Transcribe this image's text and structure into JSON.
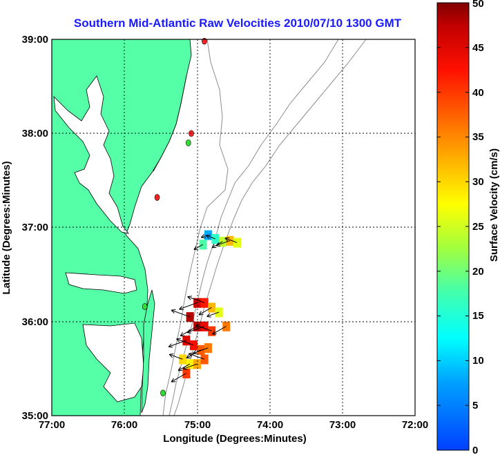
{
  "chart_data": {
    "type": "heatmap",
    "title": "Southern Mid-Atlantic Raw Velocities 2010/07/10 1300 GMT",
    "xlabel": "Longitude (Degrees:Minutes)",
    "ylabel": "Latitude (Degrees:Minutes)",
    "x_ticks": [
      "77:00",
      "76:00",
      "75:00",
      "74:00",
      "73:00",
      "72:00"
    ],
    "y_ticks": [
      "39:00",
      "38:00",
      "37:00",
      "36:00",
      "35:00"
    ],
    "xlim": [
      -77,
      -72
    ],
    "ylim": [
      35,
      39
    ],
    "grid": true,
    "colorbar": {
      "label": "Surface Velocity (cm/s)",
      "range": [
        0,
        50
      ],
      "ticks": [
        "0",
        "5",
        "10",
        "15",
        "20",
        "25",
        "30",
        "35",
        "40",
        "45",
        "50"
      ]
    },
    "velocity_cells": [
      {
        "lon": -74.85,
        "lat": 36.92,
        "v": 8
      },
      {
        "lon": -74.75,
        "lat": 36.88,
        "v": 16
      },
      {
        "lon": -74.65,
        "lat": 36.85,
        "v": 24
      },
      {
        "lon": -74.55,
        "lat": 36.86,
        "v": 32
      },
      {
        "lon": -74.45,
        "lat": 36.84,
        "v": 26
      },
      {
        "lon": -74.92,
        "lat": 36.82,
        "v": 18
      },
      {
        "lon": -75.0,
        "lat": 36.2,
        "v": 46
      },
      {
        "lon": -74.9,
        "lat": 36.2,
        "v": 42
      },
      {
        "lon": -74.8,
        "lat": 36.15,
        "v": 32
      },
      {
        "lon": -74.7,
        "lat": 36.1,
        "v": 26
      },
      {
        "lon": -75.1,
        "lat": 36.05,
        "v": 48
      },
      {
        "lon": -75.0,
        "lat": 35.95,
        "v": 47
      },
      {
        "lon": -74.9,
        "lat": 35.95,
        "v": 44
      },
      {
        "lon": -74.8,
        "lat": 35.9,
        "v": 40
      },
      {
        "lon": -74.6,
        "lat": 35.95,
        "v": 36
      },
      {
        "lon": -75.15,
        "lat": 35.8,
        "v": 45
      },
      {
        "lon": -75.05,
        "lat": 35.75,
        "v": 43
      },
      {
        "lon": -74.95,
        "lat": 35.7,
        "v": 38
      },
      {
        "lon": -74.85,
        "lat": 35.72,
        "v": 36
      },
      {
        "lon": -75.2,
        "lat": 35.6,
        "v": 30
      },
      {
        "lon": -75.1,
        "lat": 35.55,
        "v": 28
      },
      {
        "lon": -75.0,
        "lat": 35.55,
        "v": 33
      },
      {
        "lon": -74.9,
        "lat": 35.6,
        "v": 38
      },
      {
        "lon": -75.15,
        "lat": 35.45,
        "v": 40
      }
    ],
    "station_markers": [
      {
        "lon": -74.9,
        "lat": 38.98,
        "color": "#ff2020"
      },
      {
        "lon": -75.08,
        "lat": 38.0,
        "color": "#ff2020"
      },
      {
        "lon": -75.12,
        "lat": 37.9,
        "color": "#33dd33"
      },
      {
        "lon": -75.55,
        "lat": 37.32,
        "color": "#ff2020"
      },
      {
        "lon": -75.72,
        "lat": 36.16,
        "color": "#33dd33"
      },
      {
        "lon": -75.47,
        "lat": 35.24,
        "color": "#33dd33"
      }
    ],
    "colors": {
      "land": "#55ffa8",
      "title": "#1a1aff",
      "bathymetry": "#8c8c8c"
    }
  }
}
